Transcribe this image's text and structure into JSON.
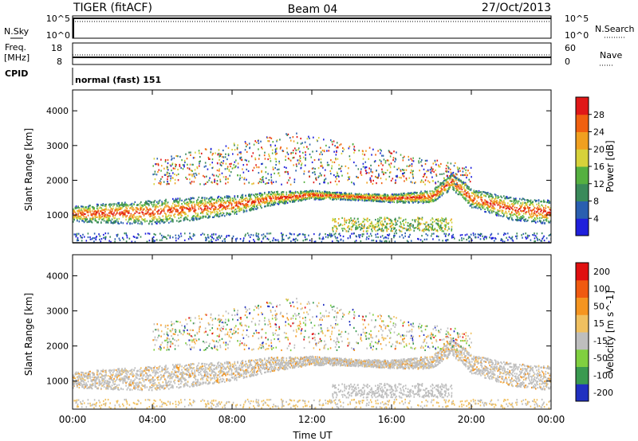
{
  "header": {
    "radar": "TIGER (fitACF)",
    "beam": "Beam 04",
    "date": "27/Oct/2013"
  },
  "top_panels": {
    "nsky_label": "N.Sky",
    "nsky_ticks": [
      "10^5",
      "10^0"
    ],
    "nsearch_label": "N.Search",
    "nsearch_ticks": [
      "10^5",
      "10^0"
    ],
    "freq_label": "Freq.",
    "freq_unit": "[MHz]",
    "freq_ticks": [
      "18",
      "8"
    ],
    "nave_label": "Nave",
    "nave_ticks": [
      "60",
      "0"
    ],
    "cpid_label": "CPID",
    "cpid_text": "normal (fast) 151"
  },
  "colors": {
    "power_scale": [
      "#1f1fdc",
      "#2a5fb0",
      "#3a8a5a",
      "#55b040",
      "#d7d23a",
      "#f0a020",
      "#f06010",
      "#e01818"
    ],
    "velocity_scale": [
      "#e01010",
      "#f05a10",
      "#f59520",
      "#f0c060",
      "#bebebe",
      "#80d040",
      "#3a9a50",
      "#2030c0"
    ]
  },
  "chart_data": [
    {
      "type": "heatmap",
      "name": "power",
      "ylabel": "Slant Range [km]",
      "ylim": [
        200,
        4600
      ],
      "yticks": [
        "1000",
        "2000",
        "3000",
        "4000"
      ],
      "xticks": [
        "00:00",
        "04:00",
        "08:00",
        "12:00",
        "16:00",
        "20:00",
        "00:00"
      ],
      "colorbar_label": "Power [dB]",
      "colorbar_ticks": [
        "4",
        "8",
        "12",
        "16",
        "20",
        "24",
        "28"
      ],
      "colorbar_range": [
        0,
        32
      ],
      "main_echo_band_center_km": [
        [
          0,
          1050
        ],
        [
          4,
          1100
        ],
        [
          8,
          1300
        ],
        [
          10,
          1500
        ],
        [
          12,
          1600
        ],
        [
          14,
          1550
        ],
        [
          16,
          1500
        ],
        [
          18,
          1550
        ],
        [
          19,
          2000
        ],
        [
          20,
          1500
        ],
        [
          22,
          1200
        ],
        [
          24,
          1100
        ]
      ]
    },
    {
      "type": "heatmap",
      "name": "velocity",
      "ylabel": "Slant Range [km]",
      "ylim": [
        200,
        4600
      ],
      "yticks": [
        "1000",
        "2000",
        "3000",
        "4000"
      ],
      "xticks": [
        "00:00",
        "04:00",
        "08:00",
        "12:00",
        "16:00",
        "20:00",
        "00:00"
      ],
      "xlabel": "Time UT",
      "colorbar_label": "Velocity [m s^-1]",
      "colorbar_ticks": [
        "200",
        "100",
        "50",
        "15",
        "-15",
        "-50",
        "-100",
        "-200"
      ]
    }
  ]
}
